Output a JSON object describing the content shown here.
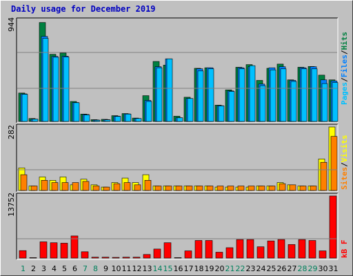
{
  "title": "Daily usage for December 2019",
  "colors": {
    "hits": "#008040",
    "files": "#0080ff",
    "pages": "#00c0ff",
    "visits": "#ffff00",
    "sites": "#ff8000",
    "kbytes": "#ff0000",
    "weekend_day": "#00805c",
    "weekday": "#000000",
    "title": "#0000c0"
  },
  "labels": {
    "pages": "Pages",
    "files": "Files",
    "hits": "Hits",
    "sep": "/",
    "sites": "Sites",
    "visits": "Visits",
    "kbf": "kB F"
  },
  "chart_data": [
    {
      "type": "bar",
      "title": "Daily usage for December 2019",
      "categories": [
        "1",
        "2",
        "3",
        "4",
        "5",
        "6",
        "7",
        "8",
        "9",
        "10",
        "11",
        "12",
        "13",
        "14",
        "15",
        "16",
        "17",
        "18",
        "19",
        "20",
        "21",
        "22",
        "23",
        "24",
        "25",
        "26",
        "27",
        "28",
        "29",
        "30",
        "31"
      ],
      "weekend_days": [
        "1",
        "7",
        "8",
        "14",
        "15",
        "21",
        "22",
        "28",
        "29"
      ],
      "ymax_label": "944",
      "ylim": [
        0,
        944
      ],
      "series": [
        {
          "name": "Hits",
          "values": [
            270,
            28,
            940,
            638,
            650,
            190,
            70,
            17,
            20,
            55,
            75,
            32,
            245,
            570,
            535,
            50,
            230,
            505,
            510,
            155,
            300,
            515,
            540,
            390,
            505,
            545,
            395,
            515,
            522,
            440,
            395
          ]
        },
        {
          "name": "Files",
          "values": [
            262,
            22,
            808,
            618,
            620,
            180,
            66,
            14,
            17,
            50,
            72,
            28,
            200,
            520,
            595,
            35,
            218,
            500,
            510,
            150,
            290,
            510,
            520,
            355,
            510,
            520,
            390,
            510,
            520,
            395,
            385
          ]
        },
        {
          "name": "Pages",
          "values": [
            258,
            22,
            790,
            610,
            612,
            178,
            62,
            12,
            15,
            48,
            70,
            28,
            190,
            510,
            595,
            35,
            218,
            480,
            500,
            148,
            285,
            500,
            530,
            340,
            490,
            500,
            380,
            500,
            500,
            360,
            370
          ]
        }
      ]
    },
    {
      "type": "bar",
      "ymax_label": "282",
      "ylim": [
        0,
        282
      ],
      "series": [
        {
          "name": "Visits",
          "values": [
            100,
            20,
            60,
            45,
            60,
            25,
            50,
            25,
            15,
            35,
            55,
            35,
            70,
            20,
            20,
            20,
            20,
            20,
            20,
            15,
            15,
            15,
            15,
            20,
            20,
            35,
            25,
            20,
            20,
            140,
            282
          ]
        },
        {
          "name": "Sites",
          "values": [
            70,
            20,
            45,
            35,
            35,
            35,
            40,
            20,
            15,
            30,
            35,
            25,
            45,
            20,
            20,
            20,
            20,
            20,
            20,
            20,
            20,
            20,
            20,
            20,
            20,
            30,
            25,
            20,
            20,
            125,
            240
          ]
        }
      ]
    },
    {
      "type": "bar",
      "ymax_label": "13752",
      "ylim": [
        0,
        13752
      ],
      "series": [
        {
          "name": "kB F",
          "values": [
            1650,
            100,
            3600,
            3400,
            3300,
            4900,
            1400,
            200,
            200,
            150,
            200,
            200,
            800,
            2000,
            3400,
            100,
            1600,
            3900,
            3900,
            1300,
            2300,
            4100,
            4100,
            2500,
            3800,
            4100,
            3000,
            4100,
            3900,
            1600,
            13752
          ]
        }
      ]
    }
  ]
}
